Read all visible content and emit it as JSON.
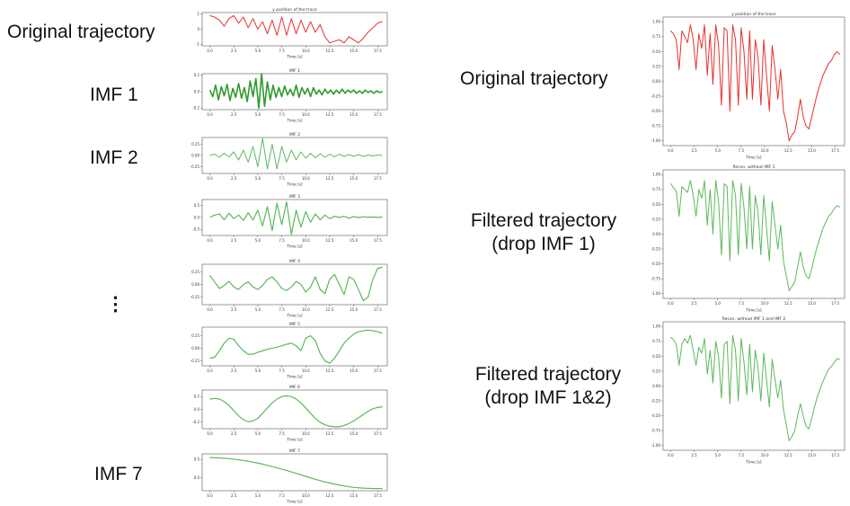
{
  "labels": {
    "original_left": "Original trajectory",
    "imf1": "IMF 1",
    "imf2": "IMF 2",
    "ellipsis": "⋮",
    "imf7": "IMF 7",
    "original_right": "Original trajectory",
    "filtered1_line1": "Filtered trajectory",
    "filtered1_line2": "(drop IMF 1)",
    "filtered2_line1": "Filtered trajectory",
    "filtered2_line2": "(drop IMF 1&2)"
  },
  "colors": {
    "original": "#e8302c",
    "imf": "#2e9a2e",
    "imf_light": "#5cb85c",
    "axis": "#555555"
  },
  "chart_data": [
    {
      "id": "left-original",
      "type": "line",
      "title": "y position of the trace",
      "xlabel": "Time [s]",
      "xticks": [
        "0.0",
        "2.5",
        "5.0",
        "7.5",
        "10.0",
        "12.5",
        "15.0",
        "17.5"
      ],
      "xlim": [
        -0.8,
        18.5
      ],
      "yticks": [
        "1",
        "0",
        "-1"
      ],
      "ylim": [
        -1.1,
        1.1
      ],
      "x": [
        0,
        0.5,
        1,
        1.5,
        2,
        2.5,
        3,
        3.5,
        4,
        4.5,
        5,
        5.5,
        6,
        6.5,
        7,
        7.5,
        8,
        8.5,
        9,
        9.5,
        10,
        10.5,
        11,
        11.5,
        12,
        12.5,
        13,
        13.5,
        14,
        14.5,
        15,
        15.5,
        16,
        16.5,
        17,
        17.5,
        18
      ],
      "y": [
        0.9,
        0.8,
        0.6,
        0.2,
        0.7,
        0.9,
        0.4,
        0.8,
        0.1,
        0.7,
        0.0,
        0.5,
        -0.3,
        0.6,
        -0.4,
        0.8,
        -0.4,
        0.7,
        -0.3,
        0.6,
        -0.2,
        0.5,
        -0.2,
        0.3,
        -0.5,
        -0.9,
        -0.8,
        -0.7,
        -0.9,
        -0.5,
        -0.7,
        -0.9,
        -0.6,
        -0.2,
        0.1,
        0.4,
        0.5
      ]
    },
    {
      "id": "imf1",
      "type": "line",
      "title": "IMF 1",
      "xlabel": "Time [s]",
      "xticks": [
        "0.0",
        "2.5",
        "5.0",
        "7.5",
        "10.0",
        "12.5",
        "15.0",
        "17.5"
      ],
      "xlim": [
        -0.8,
        18.5
      ],
      "yticks": [
        "0.2",
        "0.0",
        "-0.2"
      ],
      "ylim": [
        -0.22,
        0.22
      ],
      "x": [
        0,
        0.3,
        0.6,
        0.9,
        1.2,
        1.5,
        1.8,
        2.1,
        2.4,
        2.7,
        3.0,
        3.3,
        3.6,
        3.9,
        4.2,
        4.5,
        4.8,
        5.1,
        5.4,
        5.7,
        6.0,
        6.3,
        6.6,
        6.9,
        7.2,
        7.5,
        7.8,
        8.1,
        8.4,
        8.7,
        9.0,
        9.3,
        9.6,
        9.9,
        10.2,
        10.5,
        10.8,
        11.1,
        11.4,
        11.7,
        12.0,
        12.3,
        12.6,
        12.9,
        13.2,
        13.5,
        13.8,
        14.1,
        14.4,
        14.7,
        15.0,
        15.3,
        15.6,
        15.9,
        16.2,
        16.5,
        16.8,
        17.1,
        17.4,
        17.7,
        18.0
      ],
      "y": [
        0.02,
        -0.06,
        0.08,
        -0.1,
        0.06,
        -0.05,
        0.09,
        -0.11,
        0.04,
        -0.07,
        0.1,
        -0.08,
        0.05,
        -0.12,
        0.13,
        -0.06,
        0.16,
        -0.2,
        0.22,
        -0.18,
        0.12,
        -0.1,
        0.08,
        -0.07,
        0.05,
        -0.06,
        0.07,
        -0.04,
        0.03,
        -0.05,
        0.08,
        -0.07,
        0.05,
        -0.03,
        0.04,
        -0.06,
        0.05,
        -0.03,
        0.02,
        -0.04,
        0.03,
        -0.02,
        0.02,
        -0.03,
        0.02,
        -0.02,
        0.03,
        -0.02,
        0.02,
        -0.01,
        0.02,
        -0.02,
        0.01,
        -0.02,
        0.02,
        -0.01,
        0.01,
        -0.02,
        0.01,
        -0.01,
        0.0
      ]
    },
    {
      "id": "imf2",
      "type": "line",
      "title": "IMF 2",
      "xlabel": "Time [s]",
      "xticks": [
        "0.0",
        "2.5",
        "5.0",
        "7.5",
        "10.0",
        "12.5",
        "15.0",
        "17.5"
      ],
      "xlim": [
        -0.8,
        18.5
      ],
      "yticks": [
        "0.25",
        "0.00",
        "-0.25"
      ],
      "ylim": [
        -0.4,
        0.4
      ],
      "x": [
        0,
        0.5,
        1,
        1.5,
        2,
        2.5,
        3,
        3.5,
        4,
        4.5,
        5,
        5.5,
        6,
        6.5,
        7,
        7.5,
        8,
        8.5,
        9,
        9.5,
        10,
        10.5,
        11,
        11.5,
        12,
        12.5,
        13,
        13.5,
        14,
        14.5,
        15,
        15.5,
        16,
        16.5,
        17,
        17.5,
        18
      ],
      "y": [
        0.0,
        0.03,
        -0.04,
        0.05,
        -0.03,
        0.08,
        -0.1,
        0.12,
        -0.15,
        0.2,
        -0.25,
        0.38,
        -0.3,
        0.25,
        -0.3,
        0.2,
        -0.15,
        0.12,
        -0.1,
        0.08,
        -0.06,
        0.05,
        -0.05,
        0.04,
        -0.04,
        0.03,
        -0.03,
        0.03,
        -0.02,
        0.02,
        -0.02,
        0.02,
        -0.02,
        0.01,
        -0.01,
        0.01,
        0.0
      ]
    },
    {
      "id": "imf3",
      "type": "line",
      "title": "IMF 3",
      "xlabel": "Time [s]",
      "xticks": [
        "0.0",
        "2.5",
        "5.0",
        "7.5",
        "10.0",
        "12.5",
        "15.0",
        "17.5"
      ],
      "xlim": [
        -0.8,
        18.5
      ],
      "yticks": [
        "0.5",
        "0.0",
        "-0.5"
      ],
      "ylim": [
        -0.75,
        0.75
      ],
      "x": [
        0,
        0.5,
        1,
        1.5,
        2,
        2.5,
        3,
        3.5,
        4,
        4.5,
        5,
        5.5,
        6,
        6.5,
        7,
        7.5,
        8,
        8.5,
        9,
        9.5,
        10,
        10.5,
        11,
        11.5,
        12,
        12.5,
        13,
        13.5,
        14,
        14.5,
        15,
        15.5,
        16,
        16.5,
        17,
        17.5,
        18
      ],
      "y": [
        0.0,
        0.1,
        0.15,
        -0.1,
        0.18,
        -0.05,
        0.1,
        -0.12,
        0.2,
        -0.1,
        0.3,
        -0.35,
        0.45,
        -0.55,
        0.6,
        -0.3,
        0.65,
        -0.7,
        0.3,
        -0.4,
        0.25,
        -0.2,
        0.15,
        -0.1,
        0.1,
        -0.05,
        0.05,
        0.0,
        0.05,
        -0.03,
        0.04,
        0.0,
        0.03,
        0.01,
        0.02,
        0.01,
        0.02
      ]
    },
    {
      "id": "imf4",
      "type": "line",
      "title": "IMF 4",
      "xlabel": "Time [s]",
      "xticks": [
        "0.0",
        "2.5",
        "5.0",
        "7.5",
        "10.0",
        "12.5",
        "15.0",
        "17.5"
      ],
      "xlim": [
        -0.8,
        18.5
      ],
      "yticks": [
        "0.25",
        "0.00",
        "-0.25"
      ],
      "ylim": [
        -0.4,
        0.4
      ],
      "x": [
        0,
        0.5,
        1,
        1.5,
        2,
        2.5,
        3,
        3.5,
        4,
        4.5,
        5,
        5.5,
        6,
        6.5,
        7,
        7.5,
        8,
        8.5,
        9,
        9.5,
        10,
        10.5,
        11,
        11.5,
        12,
        12.5,
        13,
        13.5,
        14,
        14.5,
        15,
        15.5,
        16,
        16.5,
        17,
        17.5,
        18
      ],
      "y": [
        0.18,
        0.05,
        -0.08,
        -0.02,
        0.06,
        -0.05,
        -0.1,
        0.0,
        0.05,
        -0.05,
        -0.1,
        -0.02,
        0.1,
        0.15,
        0.05,
        -0.08,
        -0.12,
        -0.05,
        0.06,
        0.0,
        -0.15,
        -0.05,
        0.15,
        -0.1,
        -0.18,
        0.1,
        0.2,
        0.0,
        -0.2,
        0.15,
        0.1,
        -0.1,
        -0.32,
        -0.25,
        0.1,
        0.32,
        0.34
      ]
    },
    {
      "id": "imf5",
      "type": "line",
      "title": "IMF 5",
      "xlabel": "Time [s]",
      "xticks": [
        "0.0",
        "2.5",
        "5.0",
        "7.5",
        "10.0",
        "12.5",
        "15.0",
        "17.5"
      ],
      "xlim": [
        -0.8,
        18.5
      ],
      "yticks": [
        "0.25",
        "0.00",
        "-0.25"
      ],
      "ylim": [
        -0.35,
        0.42
      ],
      "x": [
        0,
        0.5,
        1,
        1.5,
        2,
        2.5,
        3,
        3.5,
        4,
        4.5,
        5,
        5.5,
        6,
        6.5,
        7,
        7.5,
        8,
        8.5,
        9,
        9.5,
        10,
        10.5,
        11,
        11.5,
        12,
        12.5,
        13,
        13.5,
        14,
        14.5,
        15,
        15.5,
        16,
        16.5,
        17,
        17.5,
        18
      ],
      "y": [
        -0.2,
        -0.18,
        -0.05,
        0.1,
        0.2,
        0.18,
        0.05,
        -0.05,
        -0.12,
        -0.12,
        -0.08,
        -0.05,
        -0.02,
        0.0,
        0.02,
        0.05,
        0.08,
        0.1,
        0.05,
        -0.05,
        0.2,
        0.25,
        0.15,
        -0.1,
        -0.25,
        -0.3,
        -0.2,
        -0.05,
        0.1,
        0.2,
        0.28,
        0.33,
        0.35,
        0.36,
        0.35,
        0.33,
        0.3
      ]
    },
    {
      "id": "imf6",
      "type": "line",
      "title": "IMF 6",
      "xlabel": "Time [s]",
      "xticks": [
        "0.0",
        "2.5",
        "5.0",
        "7.5",
        "10.0",
        "12.5",
        "15.0",
        "17.5"
      ],
      "xlim": [
        -0.8,
        18.5
      ],
      "yticks": [
        "0.2",
        "0.0",
        "-0.2"
      ],
      "ylim": [
        -0.3,
        0.3
      ],
      "x": [
        0,
        0.5,
        1,
        1.5,
        2,
        2.5,
        3,
        3.5,
        4,
        4.5,
        5,
        5.5,
        6,
        6.5,
        7,
        7.5,
        8,
        8.5,
        9,
        9.5,
        10,
        10.5,
        11,
        11.5,
        12,
        12.5,
        13,
        13.5,
        14,
        14.5,
        15,
        15.5,
        16,
        16.5,
        17,
        17.5,
        18
      ],
      "y": [
        0.16,
        0.17,
        0.16,
        0.12,
        0.06,
        -0.02,
        -0.1,
        -0.16,
        -0.19,
        -0.18,
        -0.14,
        -0.06,
        0.02,
        0.1,
        0.16,
        0.2,
        0.21,
        0.2,
        0.16,
        0.1,
        0.02,
        -0.06,
        -0.14,
        -0.2,
        -0.24,
        -0.26,
        -0.27,
        -0.27,
        -0.25,
        -0.22,
        -0.18,
        -0.13,
        -0.08,
        -0.03,
        0.01,
        0.03,
        0.04
      ]
    },
    {
      "id": "imf7",
      "type": "line",
      "title": "IMF 7",
      "xlabel": "Time [s]",
      "xticks": [
        "0.0",
        "2.5",
        "5.0",
        "7.5",
        "10.0",
        "12.5",
        "15.0",
        "17.5"
      ],
      "xlim": [
        -0.8,
        18.5
      ],
      "yticks": [
        "0.5",
        "0.0"
      ],
      "ylim": [
        -0.35,
        0.65
      ],
      "x": [
        0,
        1,
        2,
        3,
        4,
        5,
        6,
        7,
        8,
        9,
        10,
        11,
        12,
        13,
        14,
        15,
        16,
        17,
        18
      ],
      "y": [
        0.55,
        0.54,
        0.52,
        0.49,
        0.45,
        0.4,
        0.34,
        0.27,
        0.2,
        0.12,
        0.04,
        -0.04,
        -0.11,
        -0.17,
        -0.22,
        -0.26,
        -0.28,
        -0.29,
        -0.29
      ]
    },
    {
      "id": "right-original",
      "type": "line",
      "title": "y position of the trace",
      "xlabel": "Time [s]",
      "xticks": [
        "0.0",
        "2.5",
        "5.0",
        "7.5",
        "10.0",
        "12.5",
        "15.0",
        "17.5"
      ],
      "xlim": [
        -0.8,
        18.5
      ],
      "yticks": [
        "1.00",
        "0.75",
        "0.50",
        "0.25",
        "0.00",
        "-0.25",
        "-0.50",
        "-0.75",
        "-1.00"
      ],
      "ylim": [
        -1.08,
        1.08
      ],
      "x": [
        0,
        0.3,
        0.6,
        0.9,
        1.2,
        1.5,
        1.8,
        2.1,
        2.4,
        2.7,
        3.0,
        3.3,
        3.6,
        3.9,
        4.2,
        4.5,
        4.8,
        5.1,
        5.4,
        5.7,
        6.0,
        6.3,
        6.6,
        6.9,
        7.2,
        7.5,
        7.8,
        8.1,
        8.4,
        8.7,
        9.0,
        9.3,
        9.6,
        9.9,
        10.2,
        10.5,
        10.8,
        11.1,
        11.4,
        11.7,
        12.0,
        12.3,
        12.6,
        12.9,
        13.2,
        13.5,
        13.8,
        14.1,
        14.4,
        14.7,
        15.0,
        15.3,
        15.6,
        15.9,
        16.2,
        16.5,
        16.8,
        17.1,
        17.4,
        17.7,
        18.0
      ],
      "y": [
        0.85,
        0.8,
        0.7,
        0.2,
        0.85,
        0.75,
        0.65,
        0.95,
        0.7,
        0.2,
        0.8,
        0.55,
        0.95,
        0.1,
        0.8,
        -0.05,
        0.95,
        0.6,
        -0.4,
        0.9,
        0.85,
        -0.5,
        0.95,
        0.7,
        -0.4,
        0.9,
        0.5,
        -0.3,
        0.85,
        -0.3,
        0.7,
        0.4,
        -0.4,
        0.7,
        0.1,
        -0.5,
        0.6,
        0.2,
        -0.3,
        0.2,
        -0.5,
        -0.7,
        -1.0,
        -0.9,
        -0.85,
        -0.6,
        -0.3,
        -0.6,
        -0.75,
        -0.8,
        -0.6,
        -0.4,
        -0.2,
        -0.05,
        0.1,
        0.2,
        0.3,
        0.35,
        0.45,
        0.5,
        0.45
      ]
    },
    {
      "id": "right-filtered-1",
      "type": "line",
      "title": "Recon. without IMF 1",
      "xlabel": "Time [s]",
      "xticks": [
        "0.0",
        "2.5",
        "5.0",
        "7.5",
        "10.0",
        "12.5",
        "15.0",
        "17.5"
      ],
      "xlim": [
        -0.8,
        18.5
      ],
      "yticks": [
        "1.00",
        "0.75",
        "0.50",
        "0.25",
        "0.00",
        "-0.25",
        "-0.50",
        "-0.75",
        "-1.00"
      ],
      "ylim": [
        -1.08,
        1.08
      ],
      "x": [
        0,
        0.3,
        0.6,
        0.9,
        1.2,
        1.5,
        1.8,
        2.1,
        2.4,
        2.7,
        3.0,
        3.3,
        3.6,
        3.9,
        4.2,
        4.5,
        4.8,
        5.1,
        5.4,
        5.7,
        6.0,
        6.3,
        6.6,
        6.9,
        7.2,
        7.5,
        7.8,
        8.1,
        8.4,
        8.7,
        9.0,
        9.3,
        9.6,
        9.9,
        10.2,
        10.5,
        10.8,
        11.1,
        11.4,
        11.7,
        12.0,
        12.3,
        12.6,
        12.9,
        13.2,
        13.5,
        13.8,
        14.1,
        14.4,
        14.7,
        15.0,
        15.3,
        15.6,
        15.9,
        16.2,
        16.5,
        16.8,
        17.1,
        17.4,
        17.7,
        18.0
      ],
      "y": [
        0.85,
        0.78,
        0.72,
        0.3,
        0.8,
        0.75,
        0.7,
        0.9,
        0.65,
        0.3,
        0.75,
        0.6,
        0.9,
        0.15,
        0.75,
        0.0,
        0.9,
        0.55,
        -0.35,
        0.85,
        0.8,
        -0.45,
        0.9,
        0.65,
        -0.35,
        0.85,
        0.45,
        -0.25,
        0.8,
        -0.25,
        0.65,
        0.35,
        -0.35,
        0.65,
        0.1,
        -0.45,
        0.55,
        0.15,
        -0.25,
        0.15,
        -0.45,
        -0.7,
        -0.95,
        -0.88,
        -0.8,
        -0.55,
        -0.3,
        -0.55,
        -0.7,
        -0.75,
        -0.58,
        -0.38,
        -0.2,
        -0.05,
        0.1,
        0.2,
        0.3,
        0.35,
        0.43,
        0.48,
        0.45
      ]
    },
    {
      "id": "right-filtered-2",
      "type": "line",
      "title": "Recon. without IMF 1 and IMF 2",
      "xlabel": "Time [s]",
      "xticks": [
        "0.0",
        "2.5",
        "5.0",
        "7.5",
        "10.0",
        "12.5",
        "15.0",
        "17.5"
      ],
      "xlim": [
        -0.8,
        18.5
      ],
      "yticks": [
        "1.00",
        "0.75",
        "0.50",
        "0.25",
        "0.00",
        "-0.25",
        "-0.50",
        "-0.75",
        "-1.00"
      ],
      "ylim": [
        -1.08,
        1.08
      ],
      "x": [
        0,
        0.3,
        0.6,
        0.9,
        1.2,
        1.5,
        1.8,
        2.1,
        2.4,
        2.7,
        3.0,
        3.3,
        3.6,
        3.9,
        4.2,
        4.5,
        4.8,
        5.1,
        5.4,
        5.7,
        6.0,
        6.3,
        6.6,
        6.9,
        7.2,
        7.5,
        7.8,
        8.1,
        8.4,
        8.7,
        9.0,
        9.3,
        9.6,
        9.9,
        10.2,
        10.5,
        10.8,
        11.1,
        11.4,
        11.7,
        12.0,
        12.3,
        12.6,
        12.9,
        13.2,
        13.5,
        13.8,
        14.1,
        14.4,
        14.7,
        15.0,
        15.3,
        15.6,
        15.9,
        16.2,
        16.5,
        16.8,
        17.1,
        17.4,
        17.7,
        18.0
      ],
      "y": [
        0.82,
        0.78,
        0.7,
        0.35,
        0.7,
        0.8,
        0.72,
        0.85,
        0.6,
        0.35,
        0.65,
        0.55,
        0.8,
        0.2,
        0.6,
        0.05,
        0.75,
        0.5,
        -0.2,
        0.7,
        0.75,
        -0.3,
        0.85,
        0.6,
        -0.25,
        0.8,
        0.4,
        -0.15,
        0.7,
        -0.1,
        0.6,
        0.3,
        -0.25,
        0.55,
        0.1,
        -0.35,
        0.45,
        0.1,
        -0.2,
        0.1,
        -0.4,
        -0.65,
        -0.92,
        -0.85,
        -0.75,
        -0.5,
        -0.3,
        -0.5,
        -0.68,
        -0.72,
        -0.55,
        -0.35,
        -0.18,
        -0.05,
        0.08,
        0.18,
        0.28,
        0.33,
        0.4,
        0.46,
        0.45
      ]
    }
  ]
}
